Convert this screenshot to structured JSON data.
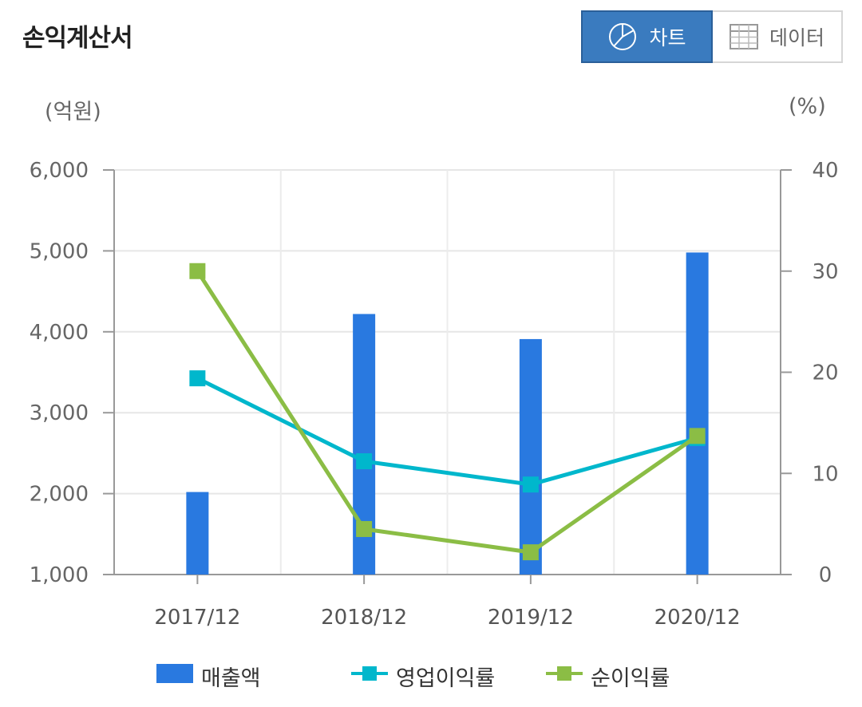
{
  "header": {
    "title": "손익계산서"
  },
  "toggle": {
    "chart_label": "차트",
    "data_label": "데이터",
    "chart_icon": "pie-chart-icon",
    "data_icon": "table-icon",
    "active": "chart"
  },
  "units": {
    "left": "(억원)",
    "right": "(%)"
  },
  "colors": {
    "revenue": "#2979e0",
    "operating_margin": "#00b7cc",
    "net_margin": "#8bbd45",
    "active_toggle": "#3a7bbf"
  },
  "chart_data": {
    "type": "bar",
    "categories": [
      "2017/12",
      "2018/12",
      "2019/12",
      "2020/12"
    ],
    "series": [
      {
        "name": "매출액",
        "type": "bar",
        "axis": "left",
        "values": [
          2020,
          4220,
          3910,
          4980
        ]
      },
      {
        "name": "영업이익률",
        "type": "line",
        "axis": "right",
        "values": [
          19.4,
          11.2,
          8.9,
          13.5
        ]
      },
      {
        "name": "순이익률",
        "type": "line",
        "axis": "right",
        "values": [
          30.0,
          4.5,
          2.2,
          13.7
        ]
      }
    ],
    "y_left": {
      "min": 1000,
      "max": 6000,
      "ticks": [
        "1,000",
        "2,000",
        "3,000",
        "4,000",
        "5,000",
        "6,000"
      ]
    },
    "y_right": {
      "min": 0,
      "max": 40,
      "ticks": [
        "0",
        "10",
        "20",
        "30",
        "40"
      ]
    },
    "grid": true,
    "legend_position": "bottom"
  }
}
